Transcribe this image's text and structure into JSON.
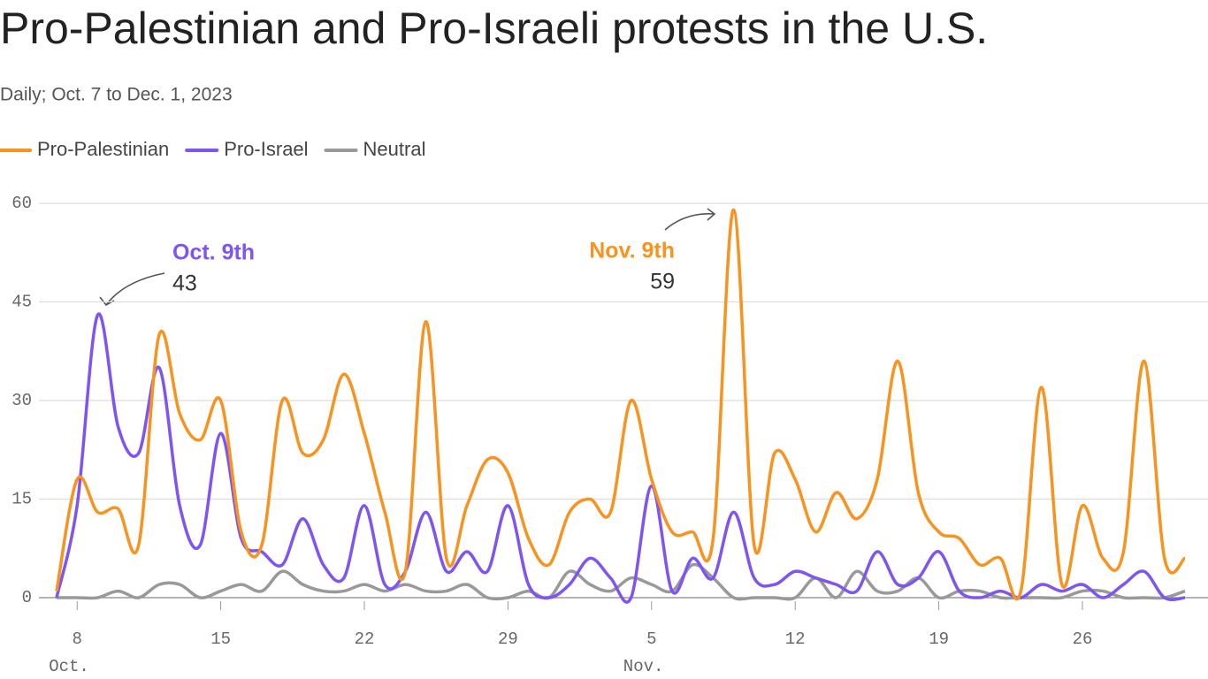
{
  "chart_data": {
    "type": "line",
    "title": "Pro-Palestinian and Pro-Israeli protests in the U.S.",
    "subtitle": "Daily; Oct. 7 to Dec. 1, 2023",
    "x": [
      "10-07",
      "10-08",
      "10-09",
      "10-10",
      "10-11",
      "10-12",
      "10-13",
      "10-14",
      "10-15",
      "10-16",
      "10-17",
      "10-18",
      "10-19",
      "10-20",
      "10-21",
      "10-22",
      "10-23",
      "10-24",
      "10-25",
      "10-26",
      "10-27",
      "10-28",
      "10-29",
      "10-30",
      "10-31",
      "11-01",
      "11-02",
      "11-03",
      "11-04",
      "11-05",
      "11-06",
      "11-07",
      "11-08",
      "11-09",
      "11-10",
      "11-11",
      "11-12",
      "11-13",
      "11-14",
      "11-15",
      "11-16",
      "11-17",
      "11-18",
      "11-19",
      "11-20",
      "11-21",
      "11-22",
      "11-23",
      "11-24",
      "11-25",
      "11-26",
      "11-27",
      "11-28",
      "11-29",
      "11-30",
      "12-01"
    ],
    "series": [
      {
        "name": "Pro-Palestinian",
        "color": "#f7931e",
        "values": [
          1,
          18,
          13,
          13.5,
          8,
          40,
          28,
          24,
          30,
          10,
          8,
          30,
          22,
          24,
          34,
          25,
          13,
          4,
          42,
          6,
          14,
          21,
          19,
          9,
          5,
          13,
          15,
          13,
          30,
          18,
          10,
          10,
          9,
          59,
          8,
          22,
          18,
          10,
          16,
          12,
          18,
          36,
          16,
          10,
          9,
          5,
          6,
          1,
          32,
          2,
          14,
          6,
          7,
          36,
          6,
          6
        ]
      },
      {
        "name": "Pro-Israel",
        "color": "#7e55f2",
        "values": [
          0,
          14,
          43,
          26,
          22,
          35,
          14,
          8,
          25,
          9,
          7,
          5,
          12,
          5,
          3,
          14,
          2,
          4,
          13,
          4,
          7,
          4,
          14,
          2,
          0,
          2,
          6,
          3,
          0,
          17,
          1,
          6,
          3,
          13,
          3,
          2,
          4,
          3,
          2,
          1,
          7,
          2,
          3,
          7,
          1,
          0,
          1,
          0,
          2,
          1,
          2,
          0,
          2,
          4,
          0,
          0
        ]
      },
      {
        "name": "Neutral",
        "color": "#999999",
        "values": [
          0,
          0,
          0,
          1,
          0,
          2,
          2,
          0,
          1,
          2,
          1,
          4,
          2,
          1,
          1,
          2,
          1,
          2,
          1,
          1,
          2,
          0,
          0,
          1,
          0,
          4,
          2,
          1,
          3,
          2,
          1,
          5,
          3,
          0,
          0,
          0,
          0,
          3,
          0,
          4,
          1,
          1,
          3,
          0,
          1,
          1,
          0,
          0,
          0,
          0,
          1,
          1,
          0,
          0,
          0,
          1
        ]
      }
    ],
    "ylim": [
      0,
      60
    ],
    "yticks": [
      0,
      15,
      30,
      45,
      60
    ],
    "grid": true,
    "xticks": [
      {
        "value": "10-08",
        "label": "8"
      },
      {
        "value": "10-15",
        "label": "15"
      },
      {
        "value": "10-22",
        "label": "22"
      },
      {
        "value": "10-29",
        "label": "29"
      },
      {
        "value": "11-05",
        "label": "5"
      },
      {
        "value": "11-12",
        "label": "12"
      },
      {
        "value": "11-19",
        "label": "19"
      },
      {
        "value": "11-26",
        "label": "26"
      }
    ],
    "xmonths": [
      {
        "value": "10-08",
        "label": "Oct."
      },
      {
        "value": "11-05",
        "label": "Nov."
      }
    ],
    "legend": "top-left",
    "annotations": [
      {
        "label": "Oct. 9th",
        "x": "10-09",
        "value": 43,
        "color": "#7e55f2"
      },
      {
        "label": "Nov. 9th",
        "x": "11-09",
        "value": 59,
        "color": "#f7931e"
      }
    ]
  }
}
